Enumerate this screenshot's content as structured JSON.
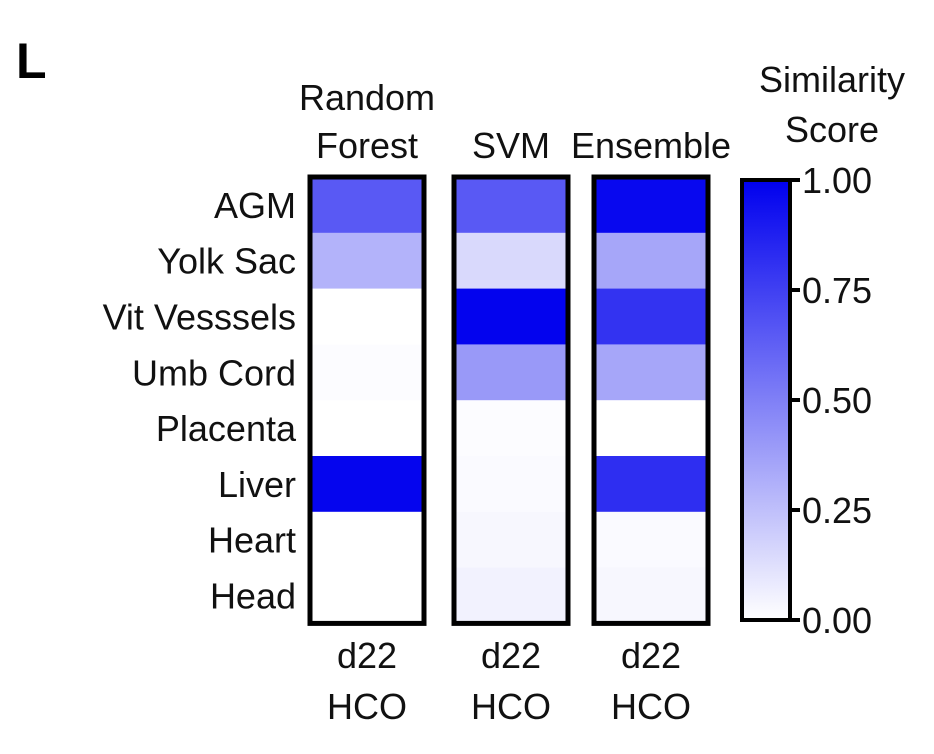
{
  "panel_label": "L",
  "colorbar": {
    "title_lines": [
      "Similarity",
      "Score"
    ],
    "ticks": [
      "1.00",
      "0.75",
      "0.50",
      "0.25",
      "0.00"
    ],
    "low_color": "#ffffff",
    "high_color": "#0000ee"
  },
  "chart_data": {
    "type": "heatmap",
    "rows": [
      "AGM",
      "Yolk Sac",
      "Vit Vesssels",
      "Umb Cord",
      "Placenta",
      "Liver",
      "Heart",
      "Head"
    ],
    "columns": [
      {
        "title_lines": [
          "Random",
          "Forest"
        ],
        "sample_lines": [
          "d22",
          "HCO"
        ],
        "values": [
          0.65,
          0.3,
          0.0,
          0.01,
          0.0,
          0.98,
          0.0,
          0.0
        ]
      },
      {
        "title_lines": [
          "SVM"
        ],
        "sample_lines": [
          "d22",
          "HCO"
        ],
        "values": [
          0.65,
          0.15,
          0.99,
          0.4,
          0.01,
          0.02,
          0.03,
          0.05
        ]
      },
      {
        "title_lines": [
          "Ensemble"
        ],
        "sample_lines": [
          "d22",
          "HCO"
        ],
        "values": [
          0.97,
          0.35,
          0.8,
          0.35,
          0.0,
          0.82,
          0.02,
          0.03
        ]
      }
    ],
    "value_range": [
      0,
      1
    ]
  }
}
